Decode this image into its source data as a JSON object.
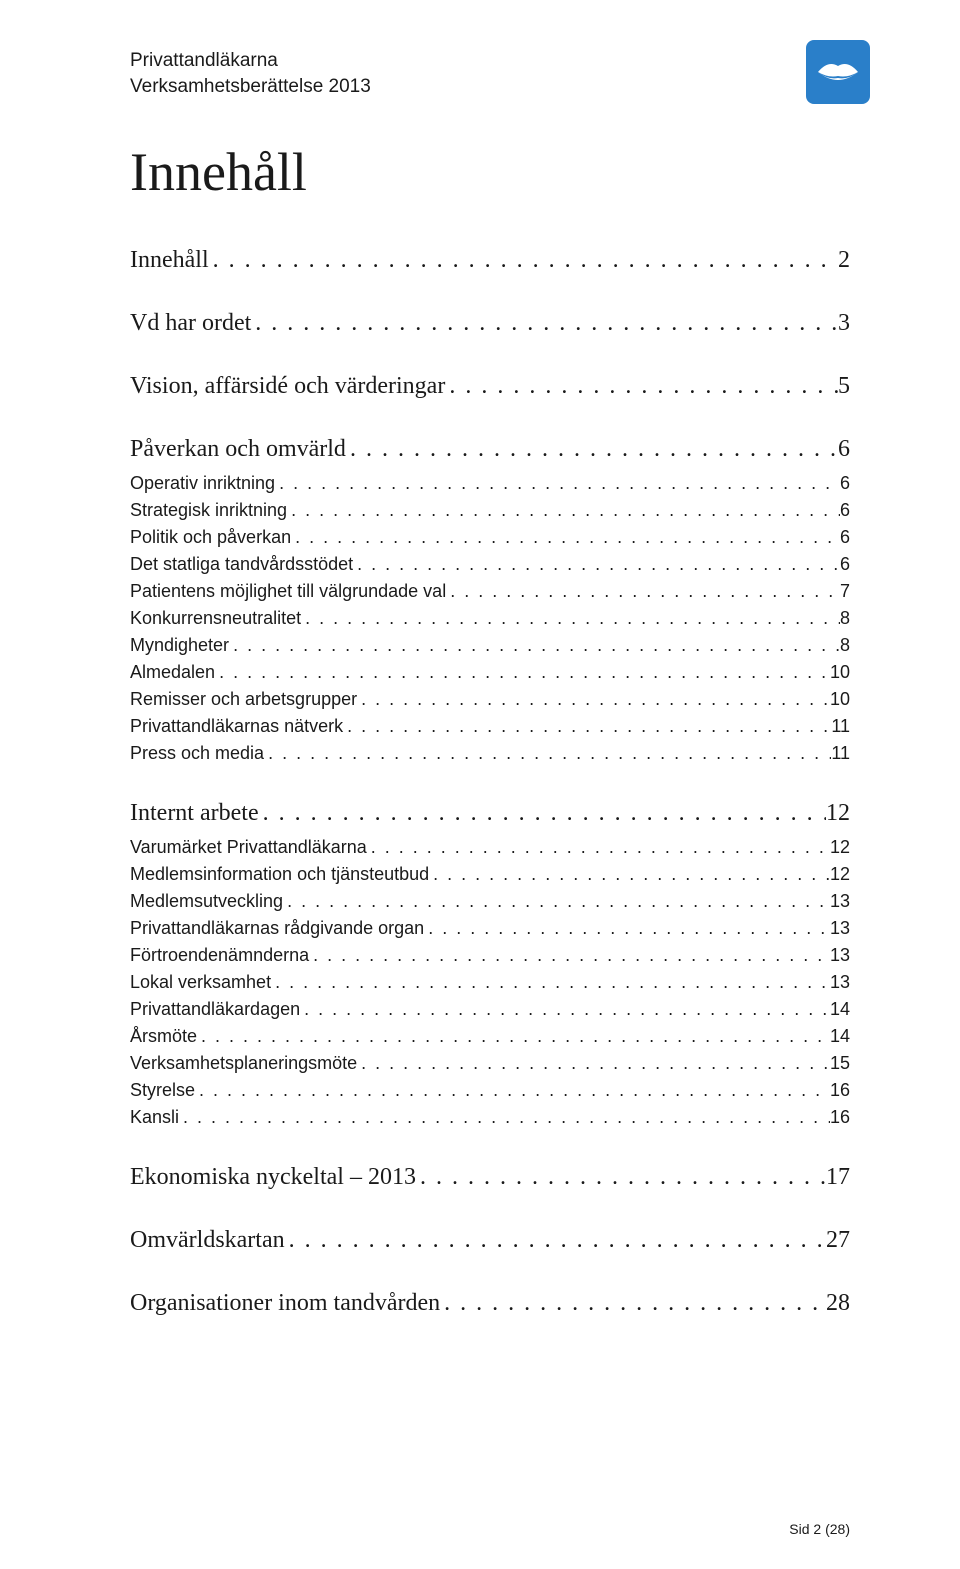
{
  "header": {
    "line1": "Privattandläkarna",
    "line2": "Verksamhetsberättelse 2013"
  },
  "title": "Innehåll",
  "logo": {
    "bg_color": "#2a7fc9",
    "fg_color": "#ffffff"
  },
  "leader_char": ".",
  "toc": [
    {
      "level": 1,
      "label": "Innehåll",
      "page": "2"
    },
    {
      "level": 1,
      "label": "Vd har ordet",
      "page": "3"
    },
    {
      "level": 1,
      "label": "Vision, affärsidé och värderingar",
      "page": "5"
    },
    {
      "level": 1,
      "label": "Påverkan och omvärld",
      "page": "6"
    },
    {
      "level": 2,
      "label": "Operativ inriktning",
      "page": "6"
    },
    {
      "level": 2,
      "label": "Strategisk inriktning",
      "page": "6"
    },
    {
      "level": 2,
      "label": "Politik och påverkan",
      "page": "6"
    },
    {
      "level": 2,
      "label": "Det statliga tandvårdsstödet",
      "page": "6"
    },
    {
      "level": 2,
      "label": "Patientens möjlighet till välgrundade val",
      "page": "7"
    },
    {
      "level": 2,
      "label": "Konkurrensneutralitet",
      "page": "8"
    },
    {
      "level": 2,
      "label": "Myndigheter",
      "page": "8"
    },
    {
      "level": 2,
      "label": "Almedalen",
      "page": "10"
    },
    {
      "level": 2,
      "label": "Remisser och arbetsgrupper",
      "page": "10"
    },
    {
      "level": 2,
      "label": "Privattandläkarnas nätverk",
      "page": "11"
    },
    {
      "level": 2,
      "label": "Press och media",
      "page": "11"
    },
    {
      "level": 1,
      "label": "Internt arbete",
      "page": "12"
    },
    {
      "level": 2,
      "label": "Varumärket Privattandläkarna",
      "page": "12"
    },
    {
      "level": 2,
      "label": "Medlemsinformation och tjänsteutbud",
      "page": "12"
    },
    {
      "level": 2,
      "label": "Medlemsutveckling",
      "page": "13"
    },
    {
      "level": 2,
      "label": "Privattandläkarnas rådgivande organ",
      "page": "13"
    },
    {
      "level": 2,
      "label": "Förtroendenämnderna",
      "page": "13"
    },
    {
      "level": 2,
      "label": "Lokal verksamhet",
      "page": "13"
    },
    {
      "level": 2,
      "label": "Privattandläkardagen",
      "page": "14"
    },
    {
      "level": 2,
      "label": "Årsmöte",
      "page": "14"
    },
    {
      "level": 2,
      "label": "Verksamhetsplaneringsmöte",
      "page": "15"
    },
    {
      "level": 2,
      "label": "Styrelse",
      "page": "16"
    },
    {
      "level": 2,
      "label": "Kansli",
      "page": "16"
    },
    {
      "level": 1,
      "label": "Ekonomiska nyckeltal – 2013",
      "page": "17"
    },
    {
      "level": 1,
      "label": "Omvärldskartan",
      "page": "27"
    },
    {
      "level": 1,
      "label": "Organisationer inom tandvården",
      "page": "28"
    }
  ],
  "footer": "Sid 2 (28)"
}
